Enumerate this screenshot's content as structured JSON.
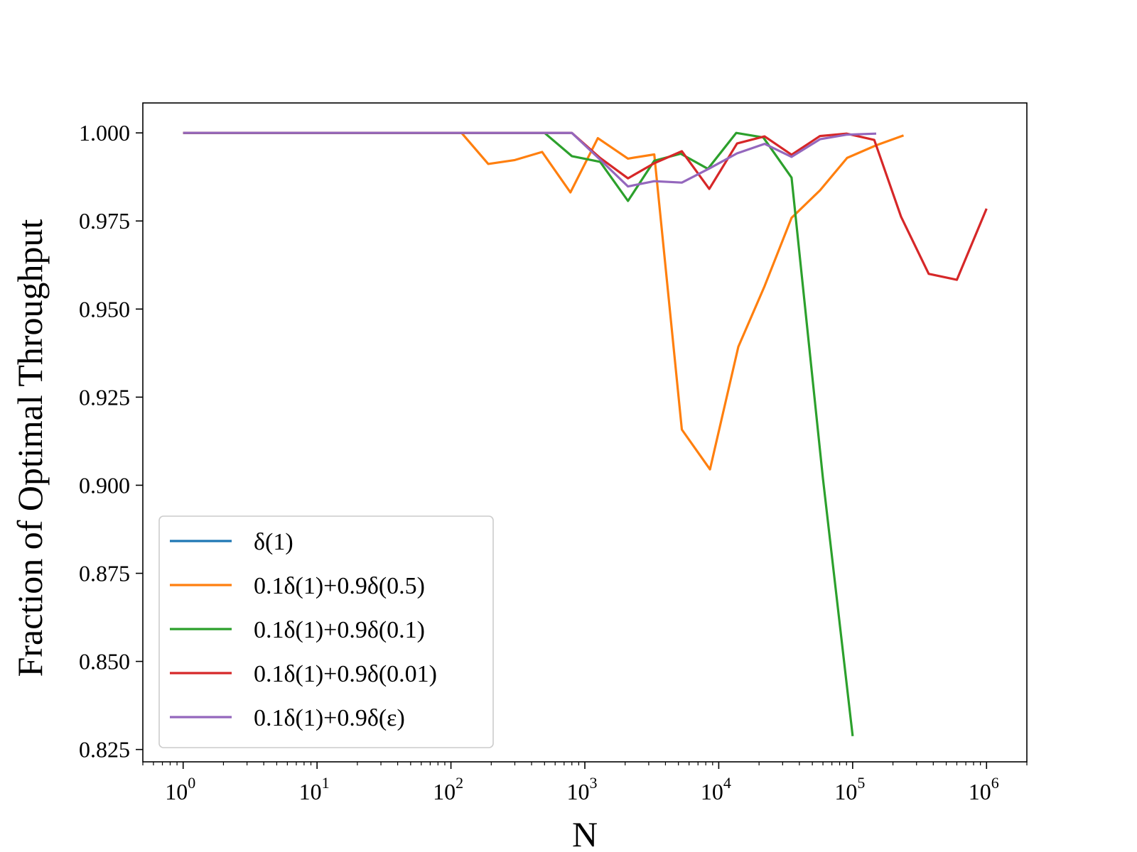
{
  "chart_data": {
    "type": "line",
    "title": "",
    "xlabel": "N",
    "ylabel": "Fraction of Optimal Throughput",
    "xscale": "log",
    "xlim": [
      0.5,
      2000000
    ],
    "ylim": [
      0.8215,
      1.0085
    ],
    "xticks": [
      {
        "value": 1,
        "base": "10",
        "exp": "0"
      },
      {
        "value": 10,
        "base": "10",
        "exp": "1"
      },
      {
        "value": 100,
        "base": "10",
        "exp": "2"
      },
      {
        "value": 1000,
        "base": "10",
        "exp": "3"
      },
      {
        "value": 10000,
        "base": "10",
        "exp": "4"
      },
      {
        "value": 100000,
        "base": "10",
        "exp": "5"
      },
      {
        "value": 1000000,
        "base": "10",
        "exp": "6"
      }
    ],
    "yticks": [
      {
        "value": 0.825,
        "label": "0.825"
      },
      {
        "value": 0.85,
        "label": "0.850"
      },
      {
        "value": 0.875,
        "label": "0.875"
      },
      {
        "value": 0.9,
        "label": "0.900"
      },
      {
        "value": 0.925,
        "label": "0.925"
      },
      {
        "value": 0.95,
        "label": "0.950"
      },
      {
        "value": 0.975,
        "label": "0.975"
      },
      {
        "value": 1.0,
        "label": "1.000"
      }
    ],
    "grid": false,
    "legend_position": "bottom-left",
    "series": [
      {
        "name": "δ(1)",
        "color": "#1f77b4",
        "points": [
          [
            1,
            1.0
          ],
          [
            800,
            1.0
          ]
        ]
      },
      {
        "name": "0.1δ(1)+0.9δ(0.5)",
        "color": "#ff7f0e",
        "points": [
          [
            1,
            1.0
          ],
          [
            120,
            1.0
          ],
          [
            190,
            0.9912
          ],
          [
            300,
            0.9923
          ],
          [
            480,
            0.9946
          ],
          [
            780,
            0.9831
          ],
          [
            1250,
            0.9985
          ],
          [
            2100,
            0.9927
          ],
          [
            3300,
            0.9939
          ],
          [
            5300,
            0.9158
          ],
          [
            8600,
            0.9045
          ],
          [
            14000,
            0.9393
          ],
          [
            22000,
            0.9565
          ],
          [
            35000,
            0.9759
          ],
          [
            57000,
            0.9837
          ],
          [
            91000,
            0.9929
          ],
          [
            150000,
            0.9965
          ],
          [
            240000,
            0.9993
          ]
        ]
      },
      {
        "name": "0.1δ(1)+0.9δ(0.1)",
        "color": "#2ca02c",
        "points": [
          [
            1,
            1.0
          ],
          [
            500,
            1.0
          ],
          [
            800,
            0.9934
          ],
          [
            1300,
            0.9918
          ],
          [
            2100,
            0.9807
          ],
          [
            3300,
            0.9921
          ],
          [
            5200,
            0.9941
          ],
          [
            8300,
            0.9898
          ],
          [
            13500,
            1.0
          ],
          [
            21500,
            0.9987
          ],
          [
            35000,
            0.9873
          ],
          [
            60000,
            0.902
          ],
          [
            100000,
            0.8288
          ]
        ]
      },
      {
        "name": "0.1δ(1)+0.9δ(0.01)",
        "color": "#d62728",
        "points": [
          [
            1,
            1.0
          ],
          [
            800,
            1.0
          ],
          [
            1300,
            0.9929
          ],
          [
            2100,
            0.9871
          ],
          [
            3300,
            0.9914
          ],
          [
            5300,
            0.9948
          ],
          [
            8500,
            0.9841
          ],
          [
            13700,
            0.997
          ],
          [
            22000,
            0.999
          ],
          [
            35000,
            0.9938
          ],
          [
            57000,
            0.9991
          ],
          [
            90000,
            0.9998
          ],
          [
            145000,
            0.998
          ],
          [
            230000,
            0.9762
          ],
          [
            370000,
            0.96
          ],
          [
            600000,
            0.9583
          ],
          [
            1000000,
            0.9785
          ]
        ]
      },
      {
        "name": "0.1δ(1)+0.9δ(ε)",
        "color": "#9467bd",
        "points": [
          [
            1,
            1.0
          ],
          [
            800,
            1.0
          ],
          [
            1300,
            0.9924
          ],
          [
            2100,
            0.9848
          ],
          [
            3300,
            0.9863
          ],
          [
            5300,
            0.9859
          ],
          [
            8500,
            0.9899
          ],
          [
            13700,
            0.9942
          ],
          [
            22000,
            0.9969
          ],
          [
            35000,
            0.9932
          ],
          [
            57000,
            0.9982
          ],
          [
            90000,
            0.9995
          ],
          [
            150000,
            0.9998
          ]
        ]
      }
    ]
  }
}
